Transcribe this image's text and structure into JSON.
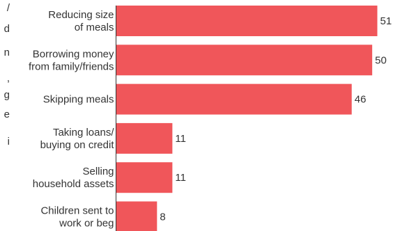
{
  "edge_text": [
    "/",
    "d",
    "n",
    ",",
    "g",
    "e",
    "i"
  ],
  "chart_data": {
    "type": "bar",
    "orientation": "horizontal",
    "categories": [
      [
        "Reducing size",
        "of meals"
      ],
      [
        "Borrowing money",
        "from family/friends"
      ],
      [
        "Skipping meals"
      ],
      [
        "Taking loans/",
        "buying on credit"
      ],
      [
        "Selling",
        "household assets"
      ],
      [
        "Children sent to",
        "work or beg"
      ]
    ],
    "values": [
      51,
      50,
      46,
      11,
      11,
      8
    ],
    "value_labels": [
      "51",
      "50",
      "46",
      "11",
      "11",
      "8"
    ],
    "xlim": [
      0,
      51
    ],
    "colors": {
      "bar": "#f0565a",
      "axis": "#333333",
      "text": "#333333"
    },
    "grid": false,
    "legend": "none"
  }
}
